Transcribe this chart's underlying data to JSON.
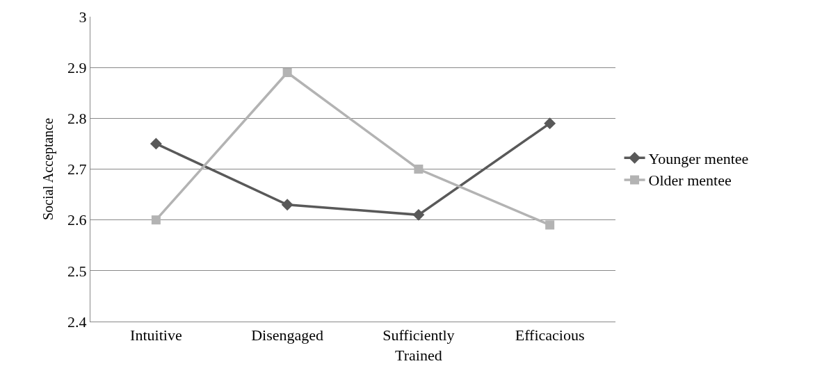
{
  "chart_data": {
    "type": "line",
    "ylabel": "Social Acceptance",
    "categories": [
      "Intuitive",
      "Disengaged",
      "Sufficiently Trained",
      "Efficacious"
    ],
    "series": [
      {
        "name": "Younger mentee",
        "color": "#595959",
        "marker": "diamond",
        "values": [
          2.75,
          2.63,
          2.61,
          2.79
        ]
      },
      {
        "name": "Older mentee",
        "color": "#b3b3b3",
        "marker": "square",
        "values": [
          2.6,
          2.89,
          2.7,
          2.59
        ]
      }
    ],
    "ylim": [
      2.4,
      3
    ],
    "yticks": [
      2.4,
      2.5,
      2.6,
      2.7,
      2.8,
      2.9,
      3
    ],
    "grid": "y",
    "legend": "right",
    "line_style": "solid"
  }
}
